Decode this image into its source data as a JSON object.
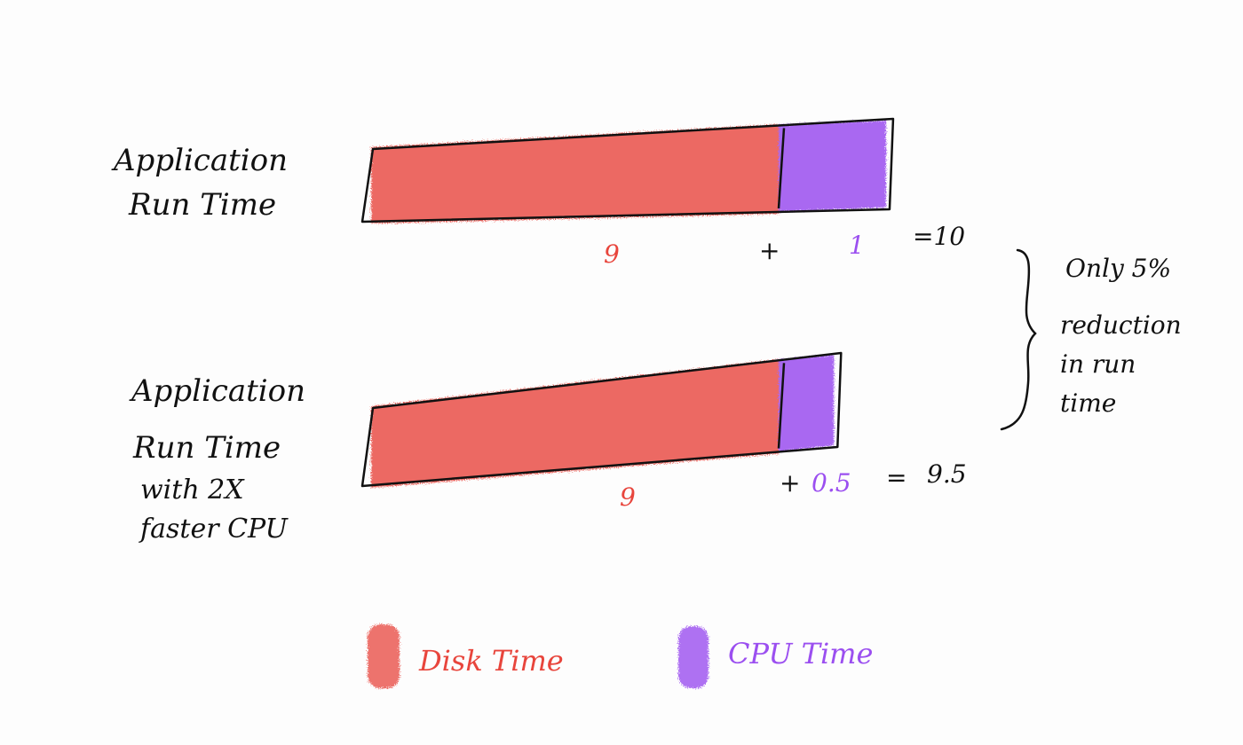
{
  "colors": {
    "disk": "#e8453c",
    "cpu": "#9b4ff0",
    "ink": "#111111",
    "background": "#fdfdfd"
  },
  "diagram": {
    "row1": {
      "label_lines": [
        "Application",
        "Run Time"
      ],
      "disk_time": 9,
      "cpu_time": 1,
      "disk_label": "9",
      "plus": "+",
      "cpu_label": "1",
      "total_label": "=10"
    },
    "row2": {
      "label_lines": [
        "Application",
        "Run Time",
        "with 2X",
        "faster CPU"
      ],
      "disk_time": 9,
      "cpu_time": 0.5,
      "disk_label": "9",
      "plus": "+",
      "cpu_label": "0.5",
      "equals": "=",
      "total_label": "9.5"
    },
    "annotation_lines": [
      "Only 5%",
      "reduction",
      "in run",
      "time"
    ],
    "legend": {
      "disk_label": "Disk Time",
      "cpu_label": "CPU Time"
    }
  }
}
